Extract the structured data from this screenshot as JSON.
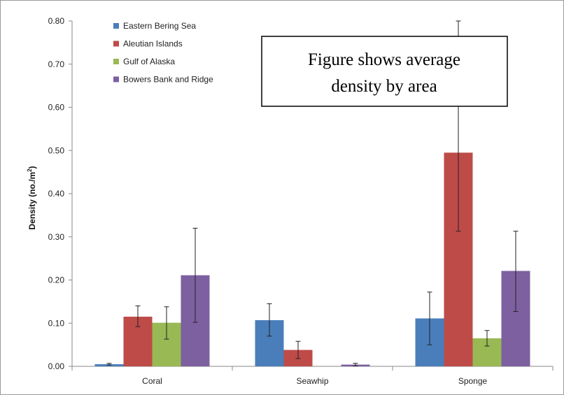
{
  "chart_data": {
    "type": "bar",
    "title": "",
    "xlabel": "",
    "ylabel": "Density (no./m",
    "ylabel_sup": "2",
    "ylabel_close": ")",
    "ylim": [
      0,
      0.8
    ],
    "yticks": [
      "0.00",
      "0.10",
      "0.20",
      "0.30",
      "0.40",
      "0.50",
      "0.60",
      "0.70",
      "0.80"
    ],
    "categories": [
      "Coral",
      "Seawhip",
      "Sponge"
    ],
    "legend_position": "top-left",
    "grid": false,
    "series": [
      {
        "name": "Eastern Bering Sea",
        "color": "#4a7ebb",
        "values": [
          0.005,
          0.107,
          0.111
        ],
        "error_low": [
          0.003,
          0.07,
          0.05
        ],
        "error_high": [
          0.007,
          0.145,
          0.172
        ]
      },
      {
        "name": "Aleutian Islands",
        "color": "#be4b48",
        "values": [
          0.115,
          0.038,
          0.495
        ],
        "error_low": [
          0.092,
          0.018,
          0.313
        ],
        "error_high": [
          0.14,
          0.058,
          0.8
        ]
      },
      {
        "name": "Gulf of Alaska",
        "color": "#98b954",
        "values": [
          0.101,
          0.0,
          0.065
        ],
        "error_low": [
          0.063,
          0.0,
          0.047
        ],
        "error_high": [
          0.138,
          0.0,
          0.083
        ]
      },
      {
        "name": "Bowers Bank and Ridge",
        "color": "#7d60a0",
        "values": [
          0.211,
          0.004,
          0.221
        ],
        "error_low": [
          0.102,
          0.001,
          0.127
        ],
        "error_high": [
          0.32,
          0.007,
          0.313
        ]
      }
    ]
  },
  "annotation": {
    "line1": "Figure shows average",
    "line2": "density by area"
  }
}
